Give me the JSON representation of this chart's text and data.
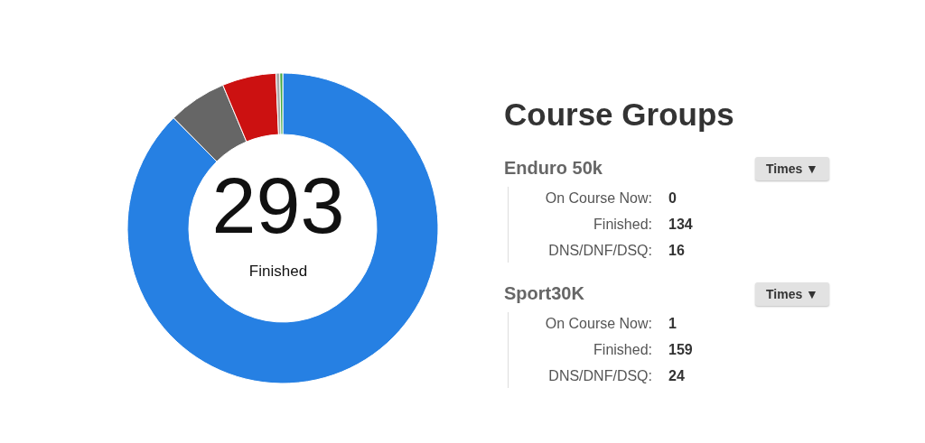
{
  "chart_data": [
    {
      "type": "donut",
      "categories": [
        null,
        null,
        null,
        null,
        null
      ],
      "values": [
        87.6,
        6.1,
        5.6,
        0.4,
        0.3
      ],
      "colors": [
        "#2680e3",
        "#666666",
        "#cc1111",
        "#aaaaaa",
        "#44aa44"
      ],
      "annotations": [
        "293",
        "Finished"
      ]
    },
    {
      "type": "other",
      "title": "Course Groups",
      "annotations": [
        "Enduro 50k",
        "Times ▼",
        "On Course Now:",
        "0",
        "Finished:",
        "134",
        "DNS/DNF/DSQ:",
        "16",
        "Sport30K",
        "Times ▼",
        "On Course Now:",
        "1",
        "Finished:",
        "159",
        "DNS/DNF/DSQ:",
        "24"
      ]
    }
  ]
}
